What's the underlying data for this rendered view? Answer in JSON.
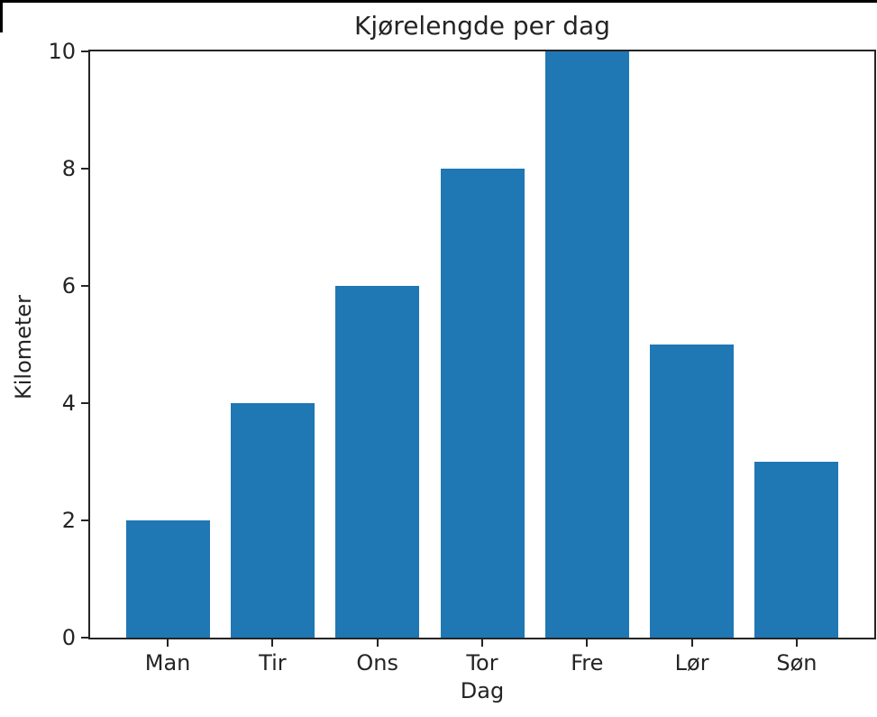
{
  "page": {
    "background_color": "#ffffff",
    "frame_color": "#000000"
  },
  "chart_data": {
    "type": "bar",
    "title": "Kjørelengde per dag",
    "xlabel": "Dag",
    "ylabel": "Kilometer",
    "categories": [
      "Man",
      "Tir",
      "Ons",
      "Tor",
      "Fre",
      "Lør",
      "Søn"
    ],
    "values": [
      2,
      4,
      6,
      8,
      10,
      5,
      3
    ],
    "yticks": [
      0,
      2,
      4,
      6,
      8,
      10
    ],
    "ylim": [
      0,
      10
    ],
    "bar_color": "#1f77b4",
    "axis_color": "#242424",
    "text_color": "#242424",
    "grid": false,
    "legend": "none"
  }
}
